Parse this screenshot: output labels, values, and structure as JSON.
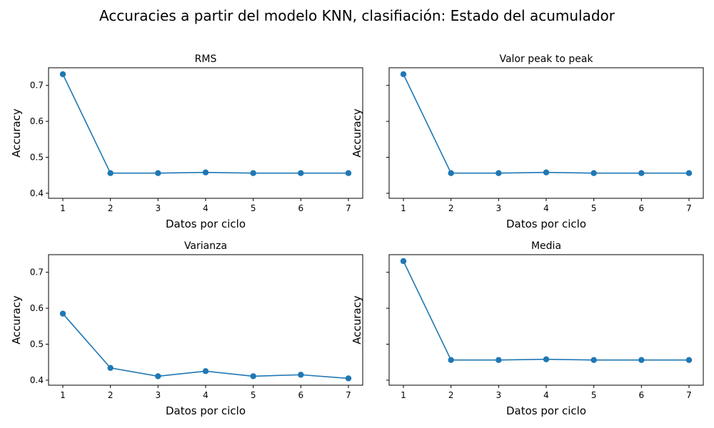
{
  "figure": {
    "title": "Accuracies a partir del modelo KNN, clasifiación: Estado del acumulador"
  },
  "style": {
    "series_color": "#1f77b4"
  },
  "chart_data": [
    {
      "type": "line",
      "title": "RMS",
      "xlabel": "Datos por ciclo",
      "ylabel": "Accuracy",
      "x": [
        1,
        2,
        3,
        4,
        5,
        6,
        7
      ],
      "xlim": [
        0.7,
        7.3
      ],
      "ylim": [
        0.386,
        0.749
      ],
      "xticks": [
        1,
        2,
        3,
        4,
        5,
        6,
        7
      ],
      "yticks": [
        0.4,
        0.5,
        0.6,
        0.7
      ],
      "ytick_labels": [
        "0.4",
        "0.5",
        "0.6",
        "0.7"
      ],
      "series": [
        {
          "values": [
            0.731,
            0.456,
            0.456,
            0.458,
            0.456,
            0.456,
            0.456
          ],
          "marker": "o"
        }
      ]
    },
    {
      "type": "line",
      "title": "Valor peak to peak",
      "xlabel": "Datos por ciclo",
      "ylabel": "Accuracy",
      "x": [
        1,
        2,
        3,
        4,
        5,
        6,
        7
      ],
      "xlim": [
        0.7,
        7.3
      ],
      "ylim": [
        0.386,
        0.749
      ],
      "xticks": [
        1,
        2,
        3,
        4,
        5,
        6,
        7
      ],
      "yticks": [
        0.4,
        0.5,
        0.6,
        0.7
      ],
      "ytick_labels": [
        "",
        "",
        "",
        ""
      ],
      "series": [
        {
          "values": [
            0.731,
            0.456,
            0.456,
            0.458,
            0.456,
            0.456,
            0.456
          ],
          "marker": "o"
        }
      ]
    },
    {
      "type": "line",
      "title": "Varianza",
      "xlabel": "Datos por ciclo",
      "ylabel": "Accuracy",
      "x": [
        1,
        2,
        3,
        4,
        5,
        6,
        7
      ],
      "xlim": [
        0.7,
        7.3
      ],
      "ylim": [
        0.386,
        0.749
      ],
      "xticks": [
        1,
        2,
        3,
        4,
        5,
        6,
        7
      ],
      "yticks": [
        0.4,
        0.5,
        0.6,
        0.7
      ],
      "ytick_labels": [
        "0.4",
        "0.5",
        "0.6",
        "0.7"
      ],
      "series": [
        {
          "values": [
            0.585,
            0.434,
            0.411,
            0.425,
            0.411,
            0.415,
            0.405
          ],
          "marker": "o"
        }
      ]
    },
    {
      "type": "line",
      "title": "Media",
      "xlabel": "Datos por ciclo",
      "ylabel": "Accuracy",
      "x": [
        1,
        2,
        3,
        4,
        5,
        6,
        7
      ],
      "xlim": [
        0.7,
        7.3
      ],
      "ylim": [
        0.386,
        0.749
      ],
      "xticks": [
        1,
        2,
        3,
        4,
        5,
        6,
        7
      ],
      "yticks": [
        0.4,
        0.5,
        0.6,
        0.7
      ],
      "ytick_labels": [
        "",
        "",
        "",
        ""
      ],
      "series": [
        {
          "values": [
            0.731,
            0.456,
            0.456,
            0.458,
            0.456,
            0.456,
            0.456
          ],
          "marker": "o"
        }
      ]
    }
  ]
}
